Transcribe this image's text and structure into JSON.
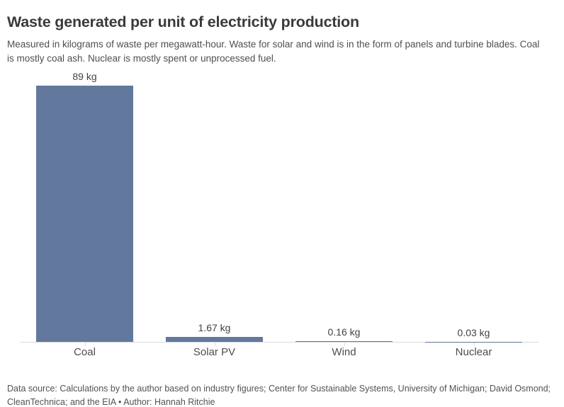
{
  "header": {
    "title": "Waste generated per unit of electricity production",
    "subtitle": "Measured in kilograms of waste per megawatt-hour. Waste for solar and wind is in the form of panels and turbine blades. Coal is mostly coal ash. Nuclear is mostly spent or unprocessed fuel."
  },
  "footer": {
    "text": "Data source: Calculations by the author based on industry figures; Center for Sustainable Systems, University of Michigan; David Osmond; CleanTechnica; and the EIA • Author: Hannah Ritchie"
  },
  "colors": {
    "bar": "#62789d",
    "axis": "#dddddd",
    "title_text": "#3a3a3a",
    "body_text": "#4f4f4f"
  },
  "chart_data": {
    "type": "bar",
    "title": "Waste generated per unit of electricity production",
    "subtitle": "Measured in kilograms of waste per megawatt-hour. Waste for solar and wind is in the form of panels and turbine blades. Coal is mostly coal ash. Nuclear is mostly spent or unprocessed fuel.",
    "categories": [
      "Coal",
      "Solar PV",
      "Wind",
      "Nuclear"
    ],
    "values": [
      89,
      1.67,
      0.16,
      0.03
    ],
    "value_labels": [
      "89 kg",
      "1.67 kg",
      "0.16 kg",
      "0.03 kg"
    ],
    "unit": "kg",
    "xlabel": "",
    "ylabel": "",
    "ylim": [
      0,
      89
    ],
    "grid": false,
    "legend": false,
    "bar_color": "#62789d"
  }
}
